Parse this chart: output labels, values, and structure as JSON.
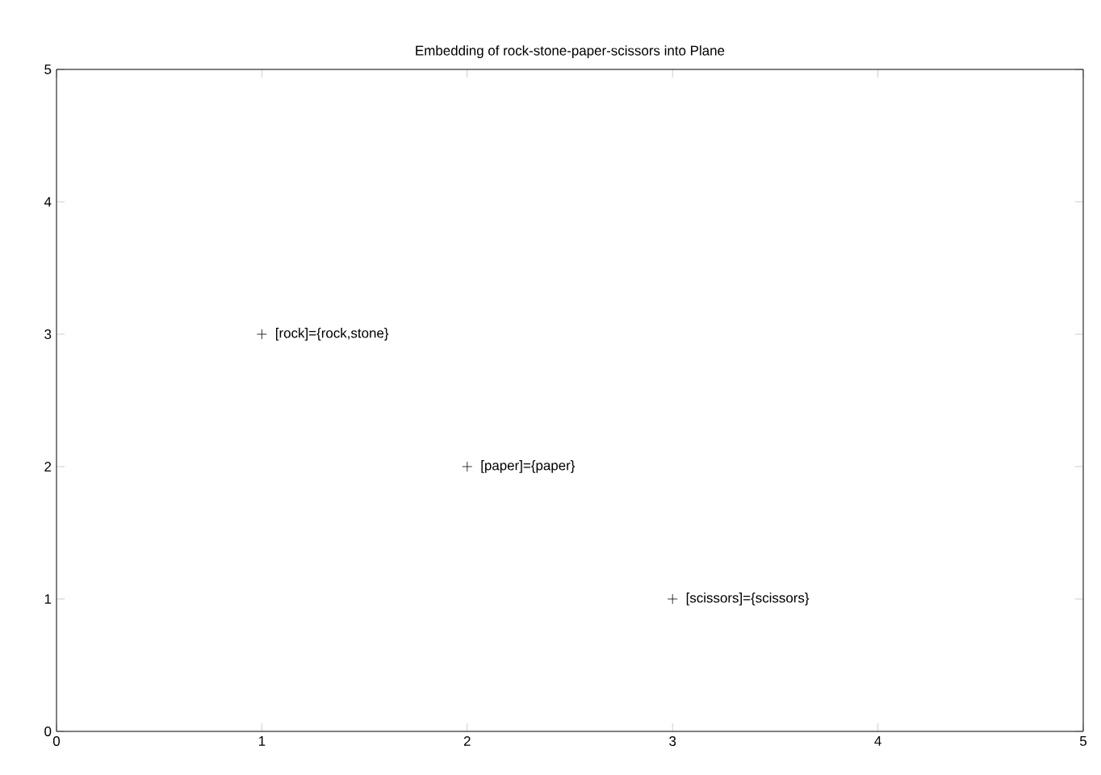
{
  "chart_data": {
    "type": "scatter",
    "title": "Embedding of rock-stone-paper-scissors into Plane",
    "x": [
      1,
      2,
      3
    ],
    "values": [
      3,
      2,
      1
    ],
    "color": "#000000",
    "marker": "cross",
    "xlim": [
      0,
      5
    ],
    "ylim": [
      0,
      5
    ],
    "xticks": [
      0,
      1,
      2,
      3,
      4,
      5
    ],
    "yticks": [
      0,
      1,
      2,
      3,
      4,
      5
    ],
    "annotations": [
      {
        "text": "[rock]={rock,stone}",
        "x": 1,
        "y": 3
      },
      {
        "text": "[paper]={paper}",
        "x": 2,
        "y": 2
      },
      {
        "text": "[scissors]={scissors}",
        "x": 3,
        "y": 1
      }
    ]
  }
}
